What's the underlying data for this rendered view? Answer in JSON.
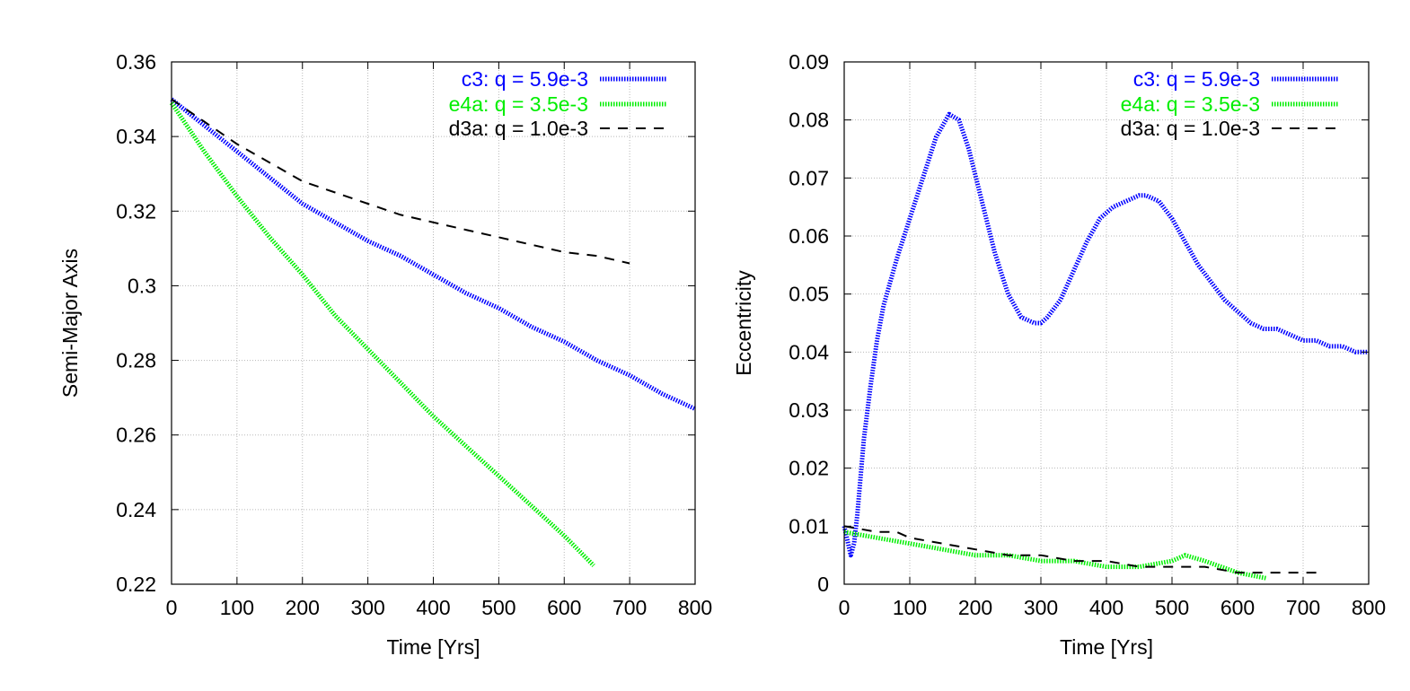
{
  "chart_data": [
    {
      "type": "line",
      "title": "",
      "xlabel": "Time [Yrs]",
      "ylabel": "Semi-Major Axis",
      "xlim": [
        0,
        800
      ],
      "ylim": [
        0.22,
        0.36
      ],
      "xticks": [
        "0",
        "100",
        "200",
        "300",
        "400",
        "500",
        "600",
        "700",
        "800"
      ],
      "yticks": [
        "0.22",
        "0.24",
        "0.26",
        "0.28",
        "0.3",
        "0.32",
        "0.34",
        "0.36"
      ],
      "grid": true,
      "legend_position": "top-right",
      "series": [
        {
          "name": "c3: q = 5.9e-3",
          "color": "#0000ff",
          "style": "dense-dotted",
          "x": [
            0,
            50,
            100,
            150,
            200,
            250,
            300,
            350,
            400,
            450,
            500,
            550,
            600,
            650,
            700,
            750,
            800
          ],
          "y": [
            0.35,
            0.343,
            0.336,
            0.329,
            0.322,
            0.317,
            0.312,
            0.308,
            0.303,
            0.298,
            0.294,
            0.289,
            0.285,
            0.28,
            0.276,
            0.271,
            0.267
          ]
        },
        {
          "name": "e4a: q = 3.5e-3",
          "color": "#00ee00",
          "style": "dense-dotted",
          "x": [
            0,
            50,
            100,
            150,
            200,
            250,
            300,
            350,
            400,
            450,
            500,
            550,
            600,
            645
          ],
          "y": [
            0.349,
            0.336,
            0.324,
            0.313,
            0.303,
            0.292,
            0.283,
            0.274,
            0.265,
            0.257,
            0.249,
            0.241,
            0.233,
            0.225
          ]
        },
        {
          "name": "d3a: q = 1.0e-3",
          "color": "#000000",
          "style": "dashed",
          "x": [
            0,
            50,
            100,
            150,
            200,
            250,
            300,
            350,
            400,
            450,
            500,
            550,
            600,
            650,
            700
          ],
          "y": [
            0.35,
            0.344,
            0.338,
            0.333,
            0.328,
            0.325,
            0.322,
            0.319,
            0.317,
            0.315,
            0.313,
            0.311,
            0.309,
            0.308,
            0.306
          ]
        }
      ]
    },
    {
      "type": "line",
      "title": "",
      "xlabel": "Time [Yrs]",
      "ylabel": "Eccentricity",
      "xlim": [
        0,
        800
      ],
      "ylim": [
        0,
        0.09
      ],
      "xticks": [
        "0",
        "100",
        "200",
        "300",
        "400",
        "500",
        "600",
        "700",
        "800"
      ],
      "yticks": [
        "0",
        "0.01",
        "0.02",
        "0.03",
        "0.04",
        "0.05",
        "0.06",
        "0.07",
        "0.08",
        "0.09"
      ],
      "grid": true,
      "legend_position": "top-right",
      "series": [
        {
          "name": "c3: q = 5.9e-3",
          "color": "#0000ff",
          "style": "dense-dotted",
          "x": [
            0,
            10,
            15,
            20,
            30,
            40,
            50,
            60,
            80,
            100,
            120,
            140,
            160,
            175,
            190,
            210,
            230,
            250,
            270,
            290,
            300,
            310,
            330,
            350,
            370,
            390,
            410,
            430,
            450,
            460,
            480,
            500,
            520,
            540,
            560,
            580,
            600,
            620,
            640,
            660,
            680,
            700,
            720,
            740,
            760,
            780,
            800
          ],
          "y": [
            0.01,
            0.005,
            0.007,
            0.012,
            0.025,
            0.034,
            0.042,
            0.048,
            0.056,
            0.063,
            0.07,
            0.077,
            0.081,
            0.08,
            0.075,
            0.066,
            0.057,
            0.05,
            0.046,
            0.045,
            0.045,
            0.046,
            0.049,
            0.054,
            0.059,
            0.063,
            0.065,
            0.066,
            0.067,
            0.067,
            0.066,
            0.063,
            0.059,
            0.055,
            0.052,
            0.049,
            0.047,
            0.045,
            0.044,
            0.044,
            0.043,
            0.042,
            0.042,
            0.041,
            0.041,
            0.04,
            0.04
          ]
        },
        {
          "name": "e4a: q = 3.5e-3",
          "color": "#00ee00",
          "style": "dense-dotted",
          "x": [
            0,
            50,
            100,
            150,
            200,
            250,
            300,
            350,
            400,
            450,
            500,
            520,
            550,
            600,
            645
          ],
          "y": [
            0.009,
            0.008,
            0.007,
            0.006,
            0.005,
            0.005,
            0.004,
            0.004,
            0.003,
            0.003,
            0.004,
            0.005,
            0.004,
            0.002,
            0.001
          ]
        },
        {
          "name": "d3a: q = 1.0e-3",
          "color": "#000000",
          "style": "dashed",
          "x": [
            0,
            50,
            80,
            100,
            150,
            200,
            250,
            300,
            350,
            400,
            450,
            500,
            550,
            600,
            650,
            700,
            720
          ],
          "y": [
            0.01,
            0.009,
            0.009,
            0.008,
            0.007,
            0.006,
            0.005,
            0.005,
            0.004,
            0.004,
            0.003,
            0.003,
            0.003,
            0.002,
            0.002,
            0.002,
            0.002
          ]
        }
      ]
    }
  ]
}
